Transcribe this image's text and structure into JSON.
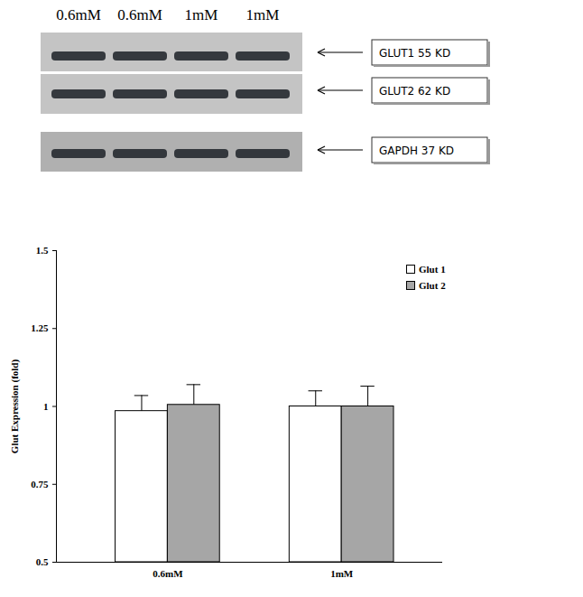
{
  "blot": {
    "lanes": [
      "0.6mM",
      "0.6mM",
      "1mM",
      "1mM"
    ],
    "bands": [
      "GLUT1 55 KD",
      "GLUT2 62 KD",
      "GAPDH 37 KD"
    ]
  },
  "chart_data": {
    "type": "bar",
    "categories": [
      "0.6mM",
      "1mM"
    ],
    "y_label": "Glut Expression (fold)",
    "series": [
      {
        "name": "Glut 1",
        "color": "#ffffff",
        "values": [
          0.985,
          1.0
        ],
        "errors": [
          0.05,
          0.05
        ]
      },
      {
        "name": "Glut 2",
        "color": "#a6a6a6",
        "values": [
          1.005,
          1.0
        ],
        "errors": [
          0.065,
          0.065
        ]
      }
    ],
    "ylim": [
      0.5,
      1.5
    ],
    "yticks": [
      0.5,
      0.75,
      1,
      1.25,
      1.5
    ],
    "legend": "top-right",
    "grid": false
  }
}
